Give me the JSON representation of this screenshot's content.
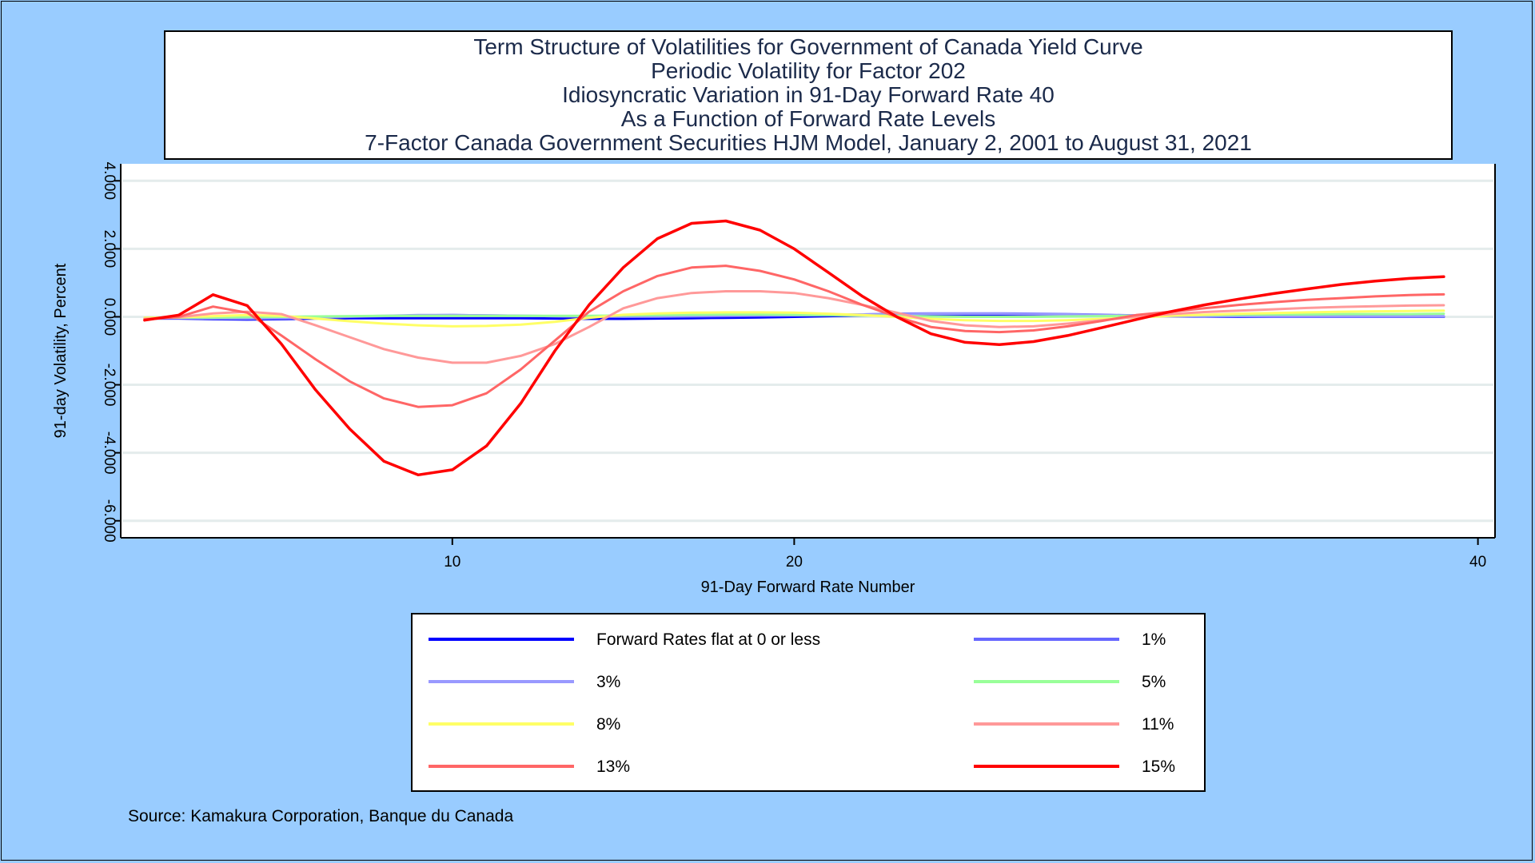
{
  "chart_data": {
    "type": "line",
    "title_lines": [
      "Term Structure of Volatilities for Government of Canada Yield Curve",
      "Periodic Volatility for Factor 202",
      "Idiosyncratic Variation in 91-Day Forward Rate 40",
      "As a Function of Forward Rate Levels",
      "7-Factor Canada Government Securities HJM Model, January 2, 2001 to August 31, 2021"
    ],
    "xlabel": "91-Day Forward Rate Number",
    "ylabel": "91-day Volatility, Percent",
    "xlim": [
      0.3,
      40.5
    ],
    "ylim": [
      -6.5,
      4.5
    ],
    "x_ticks": [
      10,
      20,
      40
    ],
    "x_tick_labels": [
      "10",
      "20",
      "40"
    ],
    "y_ticks": [
      -6,
      -4,
      -2,
      0,
      2,
      4
    ],
    "y_tick_labels": [
      "-6.000",
      "-4.000",
      "-2.000",
      "0.000",
      "2.000",
      "4.000"
    ],
    "grid": "horizontal",
    "legend_position": "bottom",
    "x": [
      1,
      2,
      3,
      4,
      5,
      6,
      7,
      8,
      9,
      10,
      11,
      12,
      13,
      14,
      15,
      16,
      17,
      18,
      19,
      20,
      21,
      22,
      23,
      24,
      25,
      26,
      27,
      28,
      29,
      30,
      31,
      32,
      33,
      34,
      35,
      36,
      37,
      38,
      39
    ],
    "series": [
      {
        "name": "Forward Rates flat at 0 or less",
        "color": "#0000FF",
        "values": [
          -0.05,
          -0.05,
          -0.07,
          -0.08,
          -0.07,
          -0.05,
          -0.04,
          -0.04,
          -0.04,
          -0.04,
          -0.04,
          -0.04,
          -0.05,
          -0.06,
          -0.06,
          -0.05,
          -0.04,
          -0.03,
          -0.02,
          0.0,
          0.02,
          0.04,
          0.06,
          0.07,
          0.07,
          0.06,
          0.06,
          0.05,
          0.04,
          0.03,
          0.02,
          0.01,
          0.0,
          0.0,
          0.0,
          0.0,
          0.0,
          0.0,
          0.0
        ]
      },
      {
        "name": "1%",
        "color": "#6666FF",
        "values": [
          -0.04,
          -0.04,
          -0.05,
          -0.06,
          -0.05,
          -0.03,
          0.0,
          0.02,
          0.04,
          0.05,
          0.04,
          0.03,
          0.02,
          0.01,
          0.0,
          0.0,
          0.01,
          0.02,
          0.03,
          0.04,
          0.05,
          0.07,
          0.09,
          0.1,
          0.1,
          0.1,
          0.09,
          0.08,
          0.06,
          0.04,
          0.03,
          0.02,
          0.01,
          0.0,
          0.0,
          0.0,
          0.0,
          0.0,
          0.0
        ]
      },
      {
        "name": "3%",
        "color": "#9999FF",
        "values": [
          -0.04,
          -0.03,
          -0.04,
          -0.04,
          -0.03,
          -0.01,
          0.01,
          0.03,
          0.05,
          0.05,
          0.04,
          0.03,
          0.02,
          0.01,
          0.01,
          0.02,
          0.03,
          0.04,
          0.05,
          0.05,
          0.06,
          0.07,
          0.08,
          0.09,
          0.09,
          0.09,
          0.08,
          0.07,
          0.05,
          0.04,
          0.03,
          0.02,
          0.02,
          0.02,
          0.02,
          0.02,
          0.02,
          0.02,
          0.02
        ]
      },
      {
        "name": "5%",
        "color": "#99FF99",
        "values": [
          -0.03,
          -0.02,
          -0.02,
          -0.01,
          0.0,
          0.01,
          0.02,
          0.03,
          0.03,
          0.03,
          0.03,
          0.03,
          0.03,
          0.03,
          0.04,
          0.05,
          0.06,
          0.07,
          0.07,
          0.06,
          0.05,
          0.04,
          0.03,
          0.01,
          0.0,
          0.0,
          0.0,
          0.01,
          0.02,
          0.03,
          0.04,
          0.05,
          0.06,
          0.07,
          0.07,
          0.08,
          0.08,
          0.08,
          0.09
        ]
      },
      {
        "name": "8%",
        "color": "#FFFF66",
        "values": [
          -0.03,
          -0.02,
          0.02,
          0.05,
          0.03,
          -0.05,
          -0.13,
          -0.2,
          -0.25,
          -0.28,
          -0.27,
          -0.23,
          -0.15,
          -0.03,
          0.06,
          0.1,
          0.12,
          0.13,
          0.13,
          0.12,
          0.09,
          0.05,
          0.0,
          -0.06,
          -0.1,
          -0.12,
          -0.12,
          -0.1,
          -0.06,
          -0.02,
          0.03,
          0.06,
          0.09,
          0.11,
          0.13,
          0.15,
          0.16,
          0.17,
          0.18
        ]
      },
      {
        "name": "11%",
        "color": "#FF9999",
        "values": [
          -0.06,
          -0.01,
          0.1,
          0.15,
          0.08,
          -0.25,
          -0.6,
          -0.95,
          -1.2,
          -1.35,
          -1.35,
          -1.15,
          -0.8,
          -0.3,
          0.25,
          0.55,
          0.7,
          0.75,
          0.75,
          0.7,
          0.55,
          0.35,
          0.12,
          -0.12,
          -0.25,
          -0.3,
          -0.28,
          -0.2,
          -0.1,
          0.0,
          0.08,
          0.14,
          0.18,
          0.22,
          0.26,
          0.29,
          0.31,
          0.33,
          0.34
        ]
      },
      {
        "name": "13%",
        "color": "#FF6666",
        "values": [
          -0.08,
          0.0,
          0.3,
          0.12,
          -0.55,
          -1.25,
          -1.9,
          -2.4,
          -2.65,
          -2.6,
          -2.25,
          -1.55,
          -0.7,
          0.15,
          0.75,
          1.2,
          1.45,
          1.5,
          1.35,
          1.1,
          0.75,
          0.35,
          0.0,
          -0.3,
          -0.42,
          -0.45,
          -0.4,
          -0.28,
          -0.12,
          0.05,
          0.15,
          0.25,
          0.35,
          0.43,
          0.5,
          0.55,
          0.6,
          0.64,
          0.66
        ]
      },
      {
        "name": "15%",
        "color": "#FF0000",
        "values": [
          -0.1,
          0.05,
          0.65,
          0.33,
          -0.8,
          -2.15,
          -3.3,
          -4.25,
          -4.65,
          -4.5,
          -3.8,
          -2.55,
          -1.0,
          0.35,
          1.45,
          2.3,
          2.75,
          2.82,
          2.55,
          2.0,
          1.3,
          0.6,
          0.0,
          -0.5,
          -0.75,
          -0.82,
          -0.73,
          -0.55,
          -0.32,
          -0.08,
          0.15,
          0.35,
          0.52,
          0.68,
          0.82,
          0.95,
          1.05,
          1.13,
          1.18
        ]
      }
    ]
  },
  "source": "Source: Kamakura Corporation, Banque du Canada"
}
